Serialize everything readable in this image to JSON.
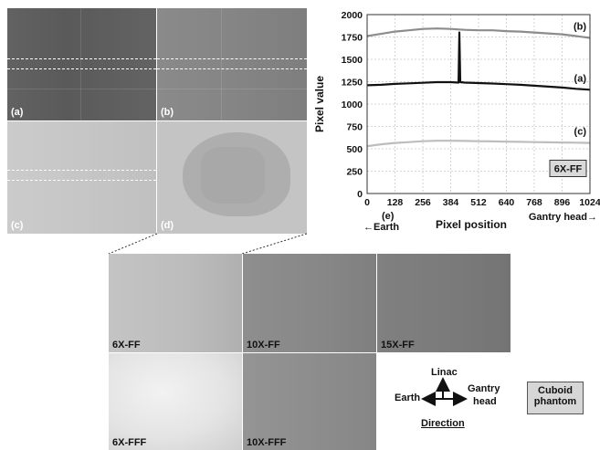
{
  "panels": {
    "a": "(a)",
    "b": "(b)",
    "c": "(c)",
    "d": "(d)",
    "e": "(e)"
  },
  "bottom_images": [
    "6X-FF",
    "10X-FF",
    "15X-FF",
    "6X-FFF",
    "10X-FFF"
  ],
  "direction": {
    "up": "Linac",
    "left": "Earth",
    "right_line1": "Gantry",
    "right_line2": "head",
    "caption": "Direction"
  },
  "phantom_label": {
    "line1": "Cuboid",
    "line2": "phantom"
  },
  "chart_data": {
    "type": "line",
    "xlabel": "Pixel position",
    "ylabel": "Pixel value",
    "x_ticks": [
      0,
      128,
      256,
      384,
      512,
      640,
      768,
      896,
      1024
    ],
    "y_ticks": [
      0,
      250,
      500,
      750,
      1000,
      1250,
      1500,
      1750,
      2000
    ],
    "xlim": [
      0,
      1024
    ],
    "ylim": [
      0,
      2000
    ],
    "grid": true,
    "x_left_note": "←Earth",
    "x_right_note": "Gantry head→",
    "legend_box": "6X-FF",
    "series": [
      {
        "name": "(b)",
        "color": "#8c8c8c",
        "x": [
          0,
          64,
          128,
          192,
          256,
          320,
          384,
          416,
          448,
          512,
          576,
          640,
          704,
          768,
          832,
          896,
          960,
          1024
        ],
        "y": [
          1760,
          1785,
          1810,
          1825,
          1840,
          1845,
          1840,
          1835,
          1830,
          1825,
          1825,
          1815,
          1810,
          1800,
          1790,
          1780,
          1760,
          1740
        ]
      },
      {
        "name": "(a)",
        "color": "#111111",
        "x": [
          0,
          64,
          128,
          192,
          256,
          320,
          384,
          420,
          424,
          428,
          448,
          512,
          576,
          640,
          704,
          768,
          832,
          896,
          960,
          1024
        ],
        "y": [
          1210,
          1215,
          1225,
          1232,
          1238,
          1245,
          1245,
          1240,
          1800,
          1245,
          1240,
          1235,
          1230,
          1222,
          1215,
          1205,
          1195,
          1185,
          1170,
          1160
        ]
      },
      {
        "name": "(c)",
        "color": "#bdbdbd",
        "x": [
          0,
          64,
          128,
          192,
          256,
          320,
          384,
          448,
          512,
          576,
          640,
          704,
          768,
          832,
          896,
          960,
          1024
        ],
        "y": [
          530,
          550,
          565,
          575,
          585,
          590,
          590,
          588,
          585,
          583,
          580,
          578,
          575,
          572,
          570,
          568,
          565
        ]
      }
    ]
  }
}
